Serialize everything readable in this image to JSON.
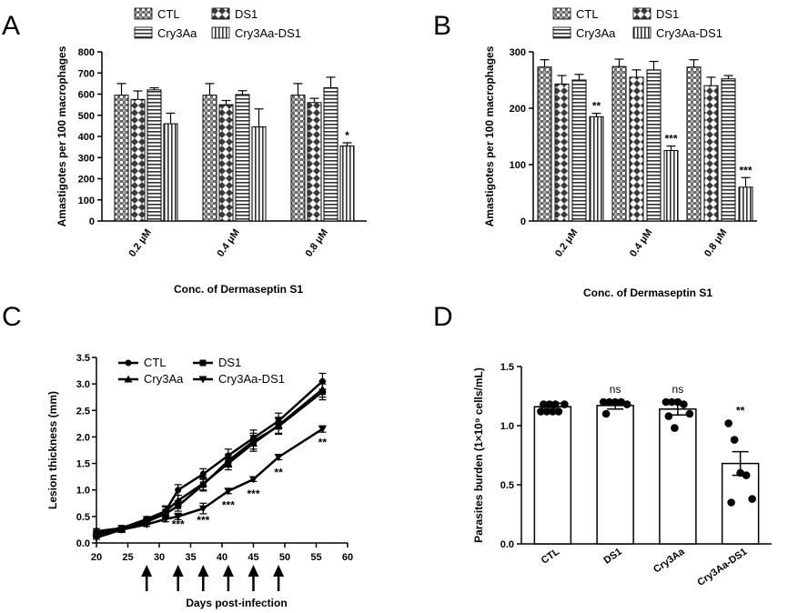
{
  "chart_data": [
    {
      "panel": "A",
      "type": "bar",
      "ylabel": "Amastigotes per 100 macrophages",
      "xlabel": "Conc. of Dermaseptin S1",
      "ylim": [
        0,
        800
      ],
      "yticks": [
        "0",
        "100",
        "200",
        "300",
        "400",
        "500",
        "600",
        "700",
        "800"
      ],
      "categories": [
        "0.2 μM",
        "0.4 μM",
        "0.8 μM"
      ],
      "series": [
        {
          "name": "CTL",
          "pattern": "pat-check",
          "values": [
            595,
            595,
            595
          ],
          "errors": [
            55,
            55,
            55
          ]
        },
        {
          "name": "DS1",
          "pattern": "pat-diamond",
          "values": [
            575,
            550,
            560
          ],
          "errors": [
            40,
            20,
            20
          ]
        },
        {
          "name": "Cry3Aa",
          "pattern": "pat-hline",
          "values": [
            620,
            598,
            630
          ],
          "errors": [
            10,
            18,
            50
          ]
        },
        {
          "name": "Cry3Aa-DS1",
          "pattern": "pat-vline",
          "values": [
            460,
            445,
            355
          ],
          "errors": [
            50,
            85,
            15
          ]
        }
      ],
      "significance": [
        {
          "category": 2,
          "series": 3,
          "label": "*"
        }
      ],
      "legend_position": "top"
    },
    {
      "panel": "B",
      "type": "bar",
      "ylabel": "Amastigotes per 100 macrophages",
      "xlabel": "Conc. of Dermaseptin S1",
      "ylim": [
        0,
        300
      ],
      "yticks": [
        "0",
        "100",
        "200",
        "300"
      ],
      "categories": [
        "0.2 μM",
        "0.4 μM",
        "0.8 μM"
      ],
      "series": [
        {
          "name": "CTL",
          "pattern": "pat-check",
          "values": [
            273,
            274,
            273
          ],
          "errors": [
            13,
            13,
            13
          ]
        },
        {
          "name": "DS1",
          "pattern": "pat-diamond",
          "values": [
            243,
            255,
            240
          ],
          "errors": [
            15,
            13,
            15
          ]
        },
        {
          "name": "Cry3Aa",
          "pattern": "pat-hline",
          "values": [
            250,
            268,
            252
          ],
          "errors": [
            10,
            15,
            6
          ]
        },
        {
          "name": "Cry3Aa-DS1",
          "pattern": "pat-vline",
          "values": [
            185,
            125,
            60
          ],
          "errors": [
            6,
            8,
            17
          ]
        }
      ],
      "significance": [
        {
          "category": 0,
          "series": 3,
          "label": "**"
        },
        {
          "category": 1,
          "series": 3,
          "label": "***"
        },
        {
          "category": 2,
          "series": 3,
          "label": "***"
        }
      ],
      "legend_position": "top"
    },
    {
      "panel": "C",
      "type": "line",
      "ylabel": "Lesion thickness (mm)",
      "xlabel": "Days post-infection",
      "xlim": [
        20,
        60
      ],
      "ylim": [
        0,
        3.5
      ],
      "xticks": [
        "20",
        "25",
        "30",
        "35",
        "40",
        "45",
        "50",
        "55",
        "60"
      ],
      "yticks": [
        "0.0",
        "0.5",
        "1.0",
        "1.5",
        "2.0",
        "2.5",
        "3.0",
        "3.5"
      ],
      "x": [
        20,
        24,
        28,
        31,
        33,
        37,
        41,
        45,
        49,
        56
      ],
      "series": [
        {
          "name": "CTL",
          "marker": "circle",
          "values": [
            0.22,
            0.28,
            0.45,
            0.6,
            1.0,
            1.3,
            1.65,
            1.98,
            2.3,
            3.05
          ],
          "errors": [
            0.05,
            0.05,
            0.05,
            0.1,
            0.1,
            0.1,
            0.12,
            0.15,
            0.15,
            0.15
          ]
        },
        {
          "name": "DS1",
          "marker": "square",
          "values": [
            0.15,
            0.25,
            0.4,
            0.55,
            0.7,
            1.1,
            1.55,
            1.92,
            2.2,
            2.85
          ],
          "errors": [
            0.05,
            0.05,
            0.05,
            0.08,
            0.1,
            0.12,
            0.12,
            0.15,
            0.15,
            0.15
          ]
        },
        {
          "name": "Cry3Aa",
          "marker": "triangle-up",
          "values": [
            0.18,
            0.25,
            0.42,
            0.6,
            0.8,
            1.12,
            1.5,
            1.88,
            2.22,
            2.9
          ],
          "errors": [
            0.05,
            0.05,
            0.05,
            0.08,
            0.1,
            0.12,
            0.12,
            0.15,
            0.15,
            0.15
          ]
        },
        {
          "name": "Cry3Aa-DS1",
          "marker": "triangle-down",
          "values": [
            0.1,
            0.25,
            0.35,
            0.45,
            0.5,
            0.65,
            0.98,
            1.2,
            1.62,
            2.15
          ],
          "errors": [
            0.03,
            0.03,
            0.04,
            0.05,
            0.06,
            0.1,
            0.05,
            0.04,
            0.05,
            0.06
          ]
        }
      ],
      "significance": [
        {
          "x": 33,
          "y": 0.28,
          "label": "***"
        },
        {
          "x": 37,
          "y": 0.36,
          "label": "***"
        },
        {
          "x": 41,
          "y": 0.64,
          "label": "***"
        },
        {
          "x": 45,
          "y": 0.86,
          "label": "***"
        },
        {
          "x": 49,
          "y": 1.26,
          "label": "**"
        },
        {
          "x": 56,
          "y": 1.83,
          "label": "**"
        }
      ],
      "injection_days": [
        28,
        33,
        37,
        41,
        45,
        49
      ],
      "injection_marker": "arrow-up",
      "legend_position": "top-left"
    },
    {
      "panel": "D",
      "type": "bar",
      "ylabel": "Parasites burden (1×10⁹ cells/mL)",
      "ylim": [
        0,
        1.5
      ],
      "yticks": [
        "0.0",
        "0.5",
        "1.0",
        "1.5"
      ],
      "categories": [
        "CTL",
        "DS1",
        "Cry3Aa",
        "Cry3Aa-DS1"
      ],
      "values": [
        1.16,
        1.17,
        1.14,
        0.68
      ],
      "errors": [
        0.03,
        0.03,
        0.05,
        0.1
      ],
      "points": [
        [
          1.12,
          1.12,
          1.12,
          1.12,
          1.18,
          1.18,
          1.18,
          1.18
        ],
        [
          1.2,
          1.2,
          1.2,
          1.2,
          1.18,
          1.1
        ],
        [
          1.2,
          1.2,
          1.2,
          1.18,
          1.1,
          1.08,
          0.98
        ],
        [
          1.02,
          0.88,
          0.6,
          0.58,
          0.38,
          0.35
        ]
      ],
      "significance": [
        {
          "category": 1,
          "label": "ns"
        },
        {
          "category": 2,
          "label": "ns"
        },
        {
          "category": 3,
          "label": "**"
        }
      ]
    }
  ],
  "panel_letters": [
    "A",
    "B",
    "C",
    "D"
  ]
}
